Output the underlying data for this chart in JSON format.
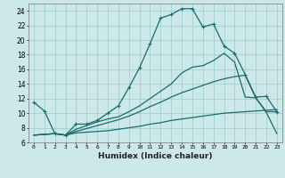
{
  "xlabel": "Humidex (Indice chaleur)",
  "x": [
    0,
    1,
    2,
    3,
    4,
    5,
    6,
    7,
    8,
    9,
    10,
    11,
    12,
    13,
    14,
    15,
    16,
    17,
    18,
    19,
    20,
    21,
    22,
    23
  ],
  "line1": [
    11.5,
    10.3,
    7.2,
    7.0,
    8.5,
    8.5,
    9.0,
    10.0,
    11.0,
    13.5,
    16.2,
    19.5,
    23.0,
    23.5,
    24.3,
    24.3,
    21.8,
    22.2,
    19.2,
    18.2,
    15.3,
    12.2,
    12.3,
    10.2
  ],
  "line2": [
    7.0,
    7.1,
    7.2,
    7.0,
    7.3,
    7.4,
    7.5,
    7.6,
    7.8,
    8.0,
    8.2,
    8.5,
    8.7,
    9.0,
    9.2,
    9.4,
    9.6,
    9.8,
    10.0,
    10.1,
    10.2,
    10.3,
    10.4,
    10.5
  ],
  "line3": [
    7.0,
    7.1,
    7.2,
    7.0,
    7.5,
    7.9,
    8.3,
    8.7,
    9.1,
    9.6,
    10.2,
    10.9,
    11.5,
    12.2,
    12.8,
    13.3,
    13.8,
    14.3,
    14.7,
    15.0,
    15.2,
    12.1,
    10.1,
    7.2
  ],
  "line4": [
    7.0,
    7.1,
    7.2,
    7.0,
    7.8,
    8.3,
    8.8,
    9.2,
    9.5,
    10.2,
    11.0,
    12.0,
    13.0,
    14.0,
    15.5,
    16.3,
    16.5,
    17.2,
    18.2,
    17.0,
    12.2,
    12.1,
    10.2,
    10.2
  ],
  "line_color": "#1a6b6b",
  "bg_color": "#cce8e8",
  "grid_color": "#99cccc",
  "ylim_min": 6,
  "ylim_max": 25,
  "yticks": [
    6,
    8,
    10,
    12,
    14,
    16,
    18,
    20,
    22,
    24
  ],
  "xtick_labels": [
    "0",
    "1",
    "2",
    "3",
    "4",
    "5",
    "6",
    "7",
    "8",
    "9",
    "10",
    "11",
    "12",
    "13",
    "14",
    "15",
    "16",
    "17",
    "18",
    "19",
    "20",
    "21",
    "22",
    "23"
  ],
  "marker": "+"
}
